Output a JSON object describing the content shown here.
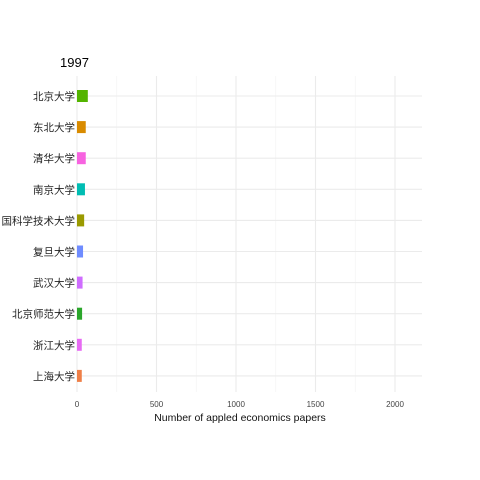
{
  "chart_data": {
    "type": "bar",
    "orientation": "horizontal",
    "title": "1997",
    "xlabel": "Number of appled economics papers",
    "ylabel": "",
    "xlim": [
      0,
      2180
    ],
    "xticks": [
      0,
      500,
      1000,
      1500,
      2000
    ],
    "grid": true,
    "categories": [
      "北京大学",
      "东北大学",
      "清华大学",
      "南京大学",
      "国科学技术大学",
      "复旦大学",
      "武汉大学",
      "北京师范大学",
      "浙江大学",
      "上海大学"
    ],
    "values": [
      68,
      55,
      55,
      50,
      45,
      38,
      35,
      32,
      30,
      30
    ],
    "colors": [
      "#53b400",
      "#d98b00",
      "#f763e0",
      "#00bdb3",
      "#9a9a00",
      "#6f8cff",
      "#cf6dff",
      "#2ba62b",
      "#e76bf3",
      "#ef7f47"
    ]
  }
}
